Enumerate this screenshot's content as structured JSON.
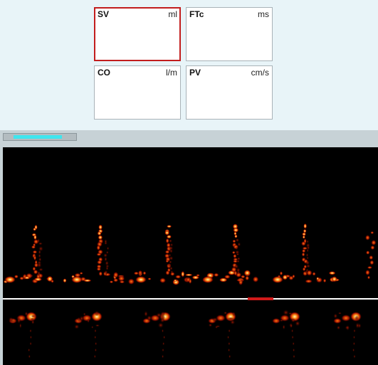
{
  "tiles": [
    {
      "name": "SV",
      "unit": "ml",
      "selected": true
    },
    {
      "name": "FTc",
      "unit": "ms",
      "selected": false
    },
    {
      "name": "CO",
      "unit": "l/m",
      "selected": false
    },
    {
      "name": "PV",
      "unit": "cm/s",
      "selected": false
    }
  ],
  "colors": {
    "panel_bg": "#e8f4f8",
    "selected_border": "#c21d1d",
    "scroll_thumb": "#3fe6ee",
    "baseline": "#ffffff",
    "cursor_marker": "#d11a1a"
  },
  "spectrum": {
    "upper_beats": 5,
    "lower_beats": 5
  }
}
